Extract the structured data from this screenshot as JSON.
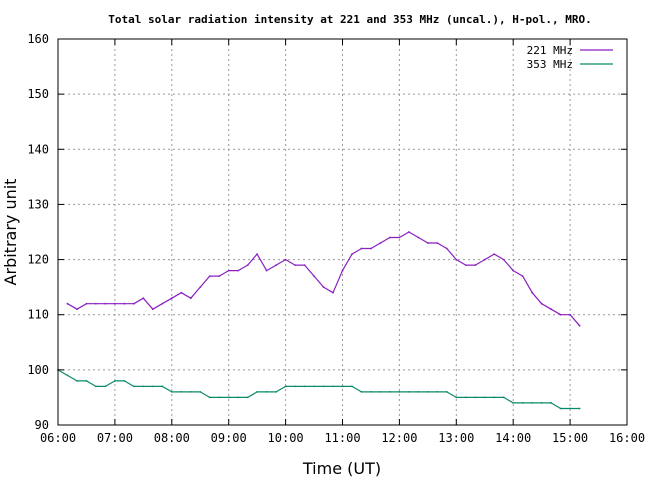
{
  "chart_data": {
    "type": "line",
    "title": "Total solar radiation intensity at 221 and 353 MHz (uncal.), H-pol., MRO.",
    "xlabel": "Time (UT)",
    "ylabel": "Arbitrary unit",
    "xlim": [
      "06:00",
      "16:00"
    ],
    "ylim": [
      90,
      160
    ],
    "xticks": [
      "06:00",
      "07:00",
      "08:00",
      "09:00",
      "10:00",
      "11:00",
      "12:00",
      "13:00",
      "14:00",
      "15:00",
      "16:00"
    ],
    "yticks": [
      90,
      100,
      110,
      120,
      130,
      140,
      150,
      160
    ],
    "grid": true,
    "legend_position": "top-right",
    "series": [
      {
        "name": "221 MHz",
        "color": "#8a1fc0",
        "x": [
          "06:10",
          "06:20",
          "06:30",
          "06:40",
          "06:50",
          "07:00",
          "07:10",
          "07:20",
          "07:30",
          "07:40",
          "07:50",
          "08:00",
          "08:10",
          "08:20",
          "08:30",
          "08:40",
          "08:50",
          "09:00",
          "09:10",
          "09:20",
          "09:30",
          "09:40",
          "09:50",
          "10:00",
          "10:10",
          "10:20",
          "10:30",
          "10:40",
          "10:50",
          "11:00",
          "11:10",
          "11:20",
          "11:30",
          "11:40",
          "11:50",
          "12:00",
          "12:10",
          "12:20",
          "12:30",
          "12:40",
          "12:50",
          "13:00",
          "13:10",
          "13:20",
          "13:30",
          "13:40",
          "13:50",
          "14:00",
          "14:10",
          "14:20",
          "14:30",
          "14:40",
          "14:50",
          "15:00",
          "15:10"
        ],
        "values": [
          112,
          111,
          112,
          112,
          112,
          112,
          112,
          112,
          113,
          111,
          112,
          113,
          114,
          113,
          115,
          117,
          117,
          118,
          118,
          119,
          121,
          118,
          119,
          120,
          119,
          119,
          117,
          115,
          114,
          118,
          121,
          122,
          122,
          123,
          124,
          124,
          125,
          124,
          123,
          123,
          122,
          120,
          119,
          119,
          120,
          121,
          120,
          118,
          117,
          114,
          112,
          111,
          110,
          110,
          108
        ]
      },
      {
        "name": "353 MHz",
        "color": "#0a8a6a",
        "x": [
          "06:00",
          "06:10",
          "06:20",
          "06:30",
          "06:40",
          "06:50",
          "07:00",
          "07:10",
          "07:20",
          "07:30",
          "07:40",
          "07:50",
          "08:00",
          "08:10",
          "08:20",
          "08:30",
          "08:40",
          "08:50",
          "09:00",
          "09:10",
          "09:20",
          "09:30",
          "09:40",
          "09:50",
          "10:00",
          "10:10",
          "10:20",
          "10:30",
          "10:40",
          "10:50",
          "11:00",
          "11:10",
          "11:20",
          "11:30",
          "11:40",
          "11:50",
          "12:00",
          "12:10",
          "12:20",
          "12:30",
          "12:40",
          "12:50",
          "13:00",
          "13:10",
          "13:20",
          "13:30",
          "13:40",
          "13:50",
          "14:00",
          "14:10",
          "14:20",
          "14:30",
          "14:40",
          "14:50",
          "15:00",
          "15:10"
        ],
        "values": [
          100,
          99,
          98,
          98,
          97,
          97,
          98,
          98,
          97,
          97,
          97,
          97,
          96,
          96,
          96,
          96,
          95,
          95,
          95,
          95,
          95,
          96,
          96,
          96,
          97,
          97,
          97,
          97,
          97,
          97,
          97,
          97,
          96,
          96,
          96,
          96,
          96,
          96,
          96,
          96,
          96,
          96,
          95,
          95,
          95,
          95,
          95,
          95,
          94,
          94,
          94,
          94,
          94,
          93,
          93,
          93
        ]
      }
    ]
  }
}
